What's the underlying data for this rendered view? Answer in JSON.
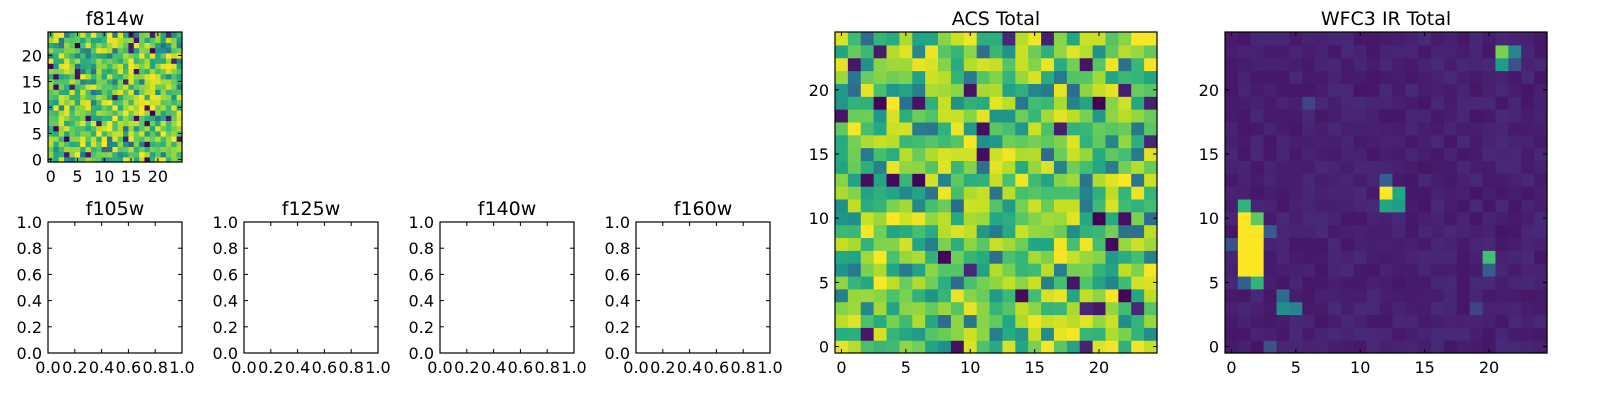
{
  "figure": {
    "description_colormap": "viridis"
  },
  "chart_data": [
    {
      "id": "f814w",
      "type": "heatmap",
      "title": "f814w",
      "grid_size": [
        25,
        25
      ],
      "xlim": [
        -0.5,
        24.5
      ],
      "ylim": [
        -0.5,
        24.5
      ],
      "xticks": [
        0,
        5,
        10,
        15,
        20
      ],
      "yticks": [
        0,
        5,
        10,
        15,
        20
      ],
      "pattern": "noise-high",
      "seed": 11
    },
    {
      "id": "f105w",
      "type": "heatmap",
      "title": "f105w",
      "empty": true,
      "xlim": [
        0,
        1
      ],
      "ylim": [
        0,
        1
      ],
      "xticks": [
        "0.0",
        "0.2",
        "0.4",
        "0.6",
        "0.8",
        "1.0"
      ],
      "yticks": [
        "0.0",
        "0.2",
        "0.4",
        "0.6",
        "0.8",
        "1.0"
      ]
    },
    {
      "id": "f125w",
      "type": "heatmap",
      "title": "f125w",
      "empty": true,
      "xlim": [
        0,
        1
      ],
      "ylim": [
        0,
        1
      ],
      "xticks": [
        "0.0",
        "0.2",
        "0.4",
        "0.6",
        "0.8",
        "1.0"
      ],
      "yticks": [
        "0.0",
        "0.2",
        "0.4",
        "0.6",
        "0.8",
        "1.0"
      ]
    },
    {
      "id": "f140w",
      "type": "heatmap",
      "title": "f140w",
      "empty": true,
      "xlim": [
        0,
        1
      ],
      "ylim": [
        0,
        1
      ],
      "xticks": [
        "0.0",
        "0.2",
        "0.4",
        "0.6",
        "0.8",
        "1.0"
      ],
      "yticks": [
        "0.0",
        "0.2",
        "0.4",
        "0.6",
        "0.8",
        "1.0"
      ]
    },
    {
      "id": "f160w",
      "type": "heatmap",
      "title": "f160w",
      "empty": true,
      "xlim": [
        0,
        1
      ],
      "ylim": [
        0,
        1
      ],
      "xticks": [
        "0.0",
        "0.2",
        "0.4",
        "0.6",
        "0.8",
        "1.0"
      ],
      "yticks": [
        "0.0",
        "0.2",
        "0.4",
        "0.6",
        "0.8",
        "1.0"
      ]
    },
    {
      "id": "acs-total",
      "type": "heatmap",
      "title": "ACS Total",
      "grid_size": [
        25,
        25
      ],
      "xlim": [
        -0.5,
        24.5
      ],
      "ylim": [
        -0.5,
        24.5
      ],
      "xticks": [
        0,
        5,
        10,
        15,
        20
      ],
      "yticks": [
        0,
        5,
        10,
        15,
        20
      ],
      "pattern": "noise-high",
      "seed": 29
    },
    {
      "id": "wfc3-ir-total",
      "type": "heatmap",
      "title": "WFC3 IR Total",
      "grid_size": [
        25,
        25
      ],
      "xlim": [
        -0.5,
        24.5
      ],
      "ylim": [
        -0.5,
        24.5
      ],
      "xticks": [
        0,
        5,
        10,
        15,
        20
      ],
      "yticks": [
        0,
        5,
        10,
        15,
        20
      ],
      "pattern": "sources",
      "seed": 47,
      "background_level": 0.06,
      "sources": [
        {
          "x": 1,
          "y": 6,
          "value": 1.0
        },
        {
          "x": 1,
          "y": 7,
          "value": 1.0
        },
        {
          "x": 1,
          "y": 8,
          "value": 1.0
        },
        {
          "x": 1,
          "y": 9,
          "value": 1.0
        },
        {
          "x": 1,
          "y": 10,
          "value": 1.0
        },
        {
          "x": 2,
          "y": 6,
          "value": 1.0
        },
        {
          "x": 2,
          "y": 7,
          "value": 1.0
        },
        {
          "x": 2,
          "y": 8,
          "value": 1.0
        },
        {
          "x": 2,
          "y": 9,
          "value": 1.0
        },
        {
          "x": 2,
          "y": 10,
          "value": 0.75
        },
        {
          "x": 1,
          "y": 11,
          "value": 0.65
        },
        {
          "x": 1,
          "y": 5,
          "value": 0.3
        },
        {
          "x": 2,
          "y": 5,
          "value": 0.65
        },
        {
          "x": 3,
          "y": 9,
          "value": 0.3
        },
        {
          "x": 0,
          "y": 8,
          "value": 0.25
        },
        {
          "x": 12,
          "y": 12,
          "value": 1.0
        },
        {
          "x": 13,
          "y": 12,
          "value": 0.6
        },
        {
          "x": 12,
          "y": 11,
          "value": 0.6
        },
        {
          "x": 13,
          "y": 11,
          "value": 0.55
        },
        {
          "x": 12,
          "y": 13,
          "value": 0.3
        },
        {
          "x": 21,
          "y": 23,
          "value": 0.8
        },
        {
          "x": 22,
          "y": 23,
          "value": 0.45
        },
        {
          "x": 21,
          "y": 22,
          "value": 0.55
        },
        {
          "x": 22,
          "y": 22,
          "value": 0.25
        },
        {
          "x": 20,
          "y": 7,
          "value": 0.7
        },
        {
          "x": 20,
          "y": 6,
          "value": 0.3
        },
        {
          "x": 4,
          "y": 3,
          "value": 0.5
        },
        {
          "x": 5,
          "y": 3,
          "value": 0.45
        },
        {
          "x": 4,
          "y": 4,
          "value": 0.35
        },
        {
          "x": 3,
          "y": 0,
          "value": 0.25
        },
        {
          "x": 6,
          "y": 19,
          "value": 0.2
        },
        {
          "x": 19,
          "y": 3,
          "value": 0.2
        }
      ]
    }
  ]
}
